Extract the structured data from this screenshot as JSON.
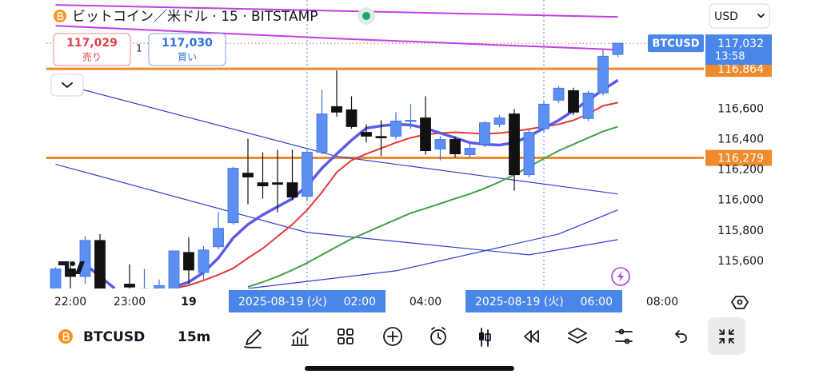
{
  "header": {
    "title": "ビットコイン／米ドル · 15 · BITSTAMP",
    "currency": "USD"
  },
  "trade": {
    "sell_price": "117,029",
    "sell_label": "売り",
    "spread": "1",
    "buy_price": "117,030",
    "buy_label": "買い"
  },
  "chart_data": {
    "type": "candlestick",
    "categories": [
      "21:45",
      "22:00",
      "22:15",
      "22:30",
      "22:45",
      "23:00",
      "23:15",
      "23:30",
      "23:45",
      "00:00",
      "00:15",
      "00:30",
      "00:45",
      "01:00",
      "01:15",
      "01:30",
      "01:45",
      "02:00",
      "02:15",
      "02:30",
      "02:45",
      "03:00",
      "03:15",
      "03:30",
      "03:45",
      "04:00",
      "04:15",
      "04:30",
      "04:45",
      "05:00",
      "05:15",
      "05:30",
      "05:45",
      "06:00",
      "06:15",
      "06:30",
      "06:45",
      "07:00",
      "07:15"
    ],
    "open": [
      115380,
      115550,
      115500,
      115737,
      115400,
      115450,
      115410,
      115420,
      115400,
      115658,
      115526,
      115695,
      115853,
      116179,
      116116,
      116116,
      116116,
      116026,
      116316,
      116616,
      116595,
      116447,
      116420,
      116421,
      116521,
      116542,
      116337,
      116400,
      116300,
      116368,
      116500,
      116568,
      116168,
      116470,
      116658,
      116721,
      116537,
      116705,
      116958
    ],
    "high": [
      115560,
      115600,
      115763,
      115779,
      115420,
      115580,
      115550,
      115480,
      115670,
      115758,
      115700,
      115921,
      116221,
      116405,
      116316,
      116332,
      116332,
      116330,
      116726,
      116853,
      116684,
      116500,
      116526,
      116579,
      116632,
      116684,
      116420,
      116420,
      116380,
      116520,
      116560,
      116600,
      116470,
      116650,
      116750,
      116740,
      116720,
      116990,
      117032
    ],
    "low": [
      115300,
      115400,
      115450,
      115350,
      115300,
      115380,
      115350,
      115380,
      115380,
      115450,
      115480,
      115680,
      115840,
      115974,
      116011,
      115921,
      116000,
      116000,
      116300,
      116550,
      116470,
      116380,
      116290,
      116400,
      116470,
      116300,
      116263,
      116280,
      116280,
      116350,
      116480,
      116063,
      116150,
      116450,
      116640,
      116560,
      116520,
      116690,
      116940
    ],
    "close": [
      115550,
      115500,
      115737,
      115400,
      115380,
      115430,
      115420,
      115440,
      115668,
      115542,
      115674,
      115816,
      116211,
      116153,
      116095,
      116105,
      116021,
      116316,
      116568,
      116579,
      116484,
      116421,
      116410,
      116521,
      116526,
      116326,
      116400,
      116305,
      116342,
      116510,
      116542,
      116168,
      116447,
      116632,
      116737,
      116579,
      116705,
      116947,
      117032
    ],
    "up_color": "#5d8ff2",
    "down_color": "#111111",
    "ylim": [
      115421,
      117316
    ],
    "yticks": [
      {
        "value": 115600,
        "label": "115,600"
      },
      {
        "value": 115800,
        "label": "115,800"
      },
      {
        "value": 116000,
        "label": "116,000"
      },
      {
        "value": 116200,
        "label": "116,200"
      },
      {
        "value": 116400,
        "label": "116,400"
      },
      {
        "value": 116600,
        "label": "116,600"
      }
    ],
    "xticks": [
      "22:00",
      "23:00",
      {
        "value": "00:00",
        "label": "19"
      },
      "04:00",
      "08:00"
    ],
    "crosshairs": [
      {
        "date": "2025-08-19 (火)",
        "time": "02:00"
      },
      {
        "date": "2025-08-19 (火)",
        "time": "06:00"
      }
    ],
    "lines": [
      {
        "color": "#c23fe3",
        "x": [
          "21:45",
          "07:15"
        ],
        "values": [
          117284,
          117205
        ]
      },
      {
        "color": "#c23fe3",
        "x": [
          "21:45",
          "02:30",
          "07:15"
        ],
        "values": [
          117147,
          117063,
          116989
        ]
      },
      {
        "color": "#2f3fd6",
        "x": [
          "21:45",
          "02:30",
          "07:15"
        ],
        "values": [
          116774,
          116289,
          116042
        ]
      },
      {
        "color": "#2f3fd6",
        "x": [
          "21:45",
          "02:00",
          "05:45",
          "07:15"
        ],
        "values": [
          116237,
          115789,
          115642,
          115742
        ]
      },
      {
        "color": "#2f3fd6",
        "x": [
          "01:00",
          "03:30",
          "06:15",
          "07:15"
        ],
        "values": [
          115421,
          115537,
          115779,
          115937
        ]
      },
      {
        "color": "#43a047",
        "values": [
          null,
          null,
          null,
          null,
          null,
          null,
          null,
          null,
          null,
          null,
          null,
          null,
          null,
          115432,
          115463,
          115500,
          115542,
          115589,
          115642,
          115695,
          115747,
          115789,
          115832,
          115874,
          115916,
          115947,
          115979,
          116011,
          116042,
          116079,
          116121,
          116168,
          116221,
          116274,
          116326,
          116368,
          116411,
          116453,
          116484
        ]
      },
      {
        "color": "#e53935",
        "values": [
          null,
          null,
          null,
          null,
          null,
          null,
          null,
          null,
          115421,
          115442,
          115474,
          115511,
          115553,
          115621,
          115684,
          115763,
          115842,
          115937,
          116053,
          116184,
          116263,
          116305,
          116342,
          116379,
          116411,
          116432,
          116442,
          116447,
          116442,
          116437,
          116442,
          116453,
          116468,
          116484,
          116500,
          116526,
          116568,
          116621,
          116642
        ]
      },
      {
        "color": "#5b5ce6",
        "values": [
          null,
          null,
          115579,
          115500,
          115421,
          null,
          null,
          null,
          115432,
          115463,
          115526,
          115621,
          115753,
          115842,
          115905,
          115958,
          116011,
          116095,
          116211,
          116305,
          116395,
          116474,
          116489,
          116500,
          116495,
          116474,
          116442,
          116411,
          116379,
          116368,
          116363,
          116379,
          116421,
          116474,
          116526,
          116589,
          116658,
          116726,
          116789
        ]
      }
    ],
    "price_lines": [
      {
        "value": 116864,
        "label": "116,864",
        "color": "#ef8b2c"
      },
      {
        "value": 116279,
        "label": "116,279",
        "color": "#ef8b2c"
      }
    ],
    "last_price": {
      "symbol": "BTCUSD",
      "value": 117032,
      "label": "117,032",
      "countdown": "13:58",
      "color": "#4a86e8"
    }
  },
  "toolbar": {
    "symbol": "BTCUSD",
    "interval": "15m"
  }
}
